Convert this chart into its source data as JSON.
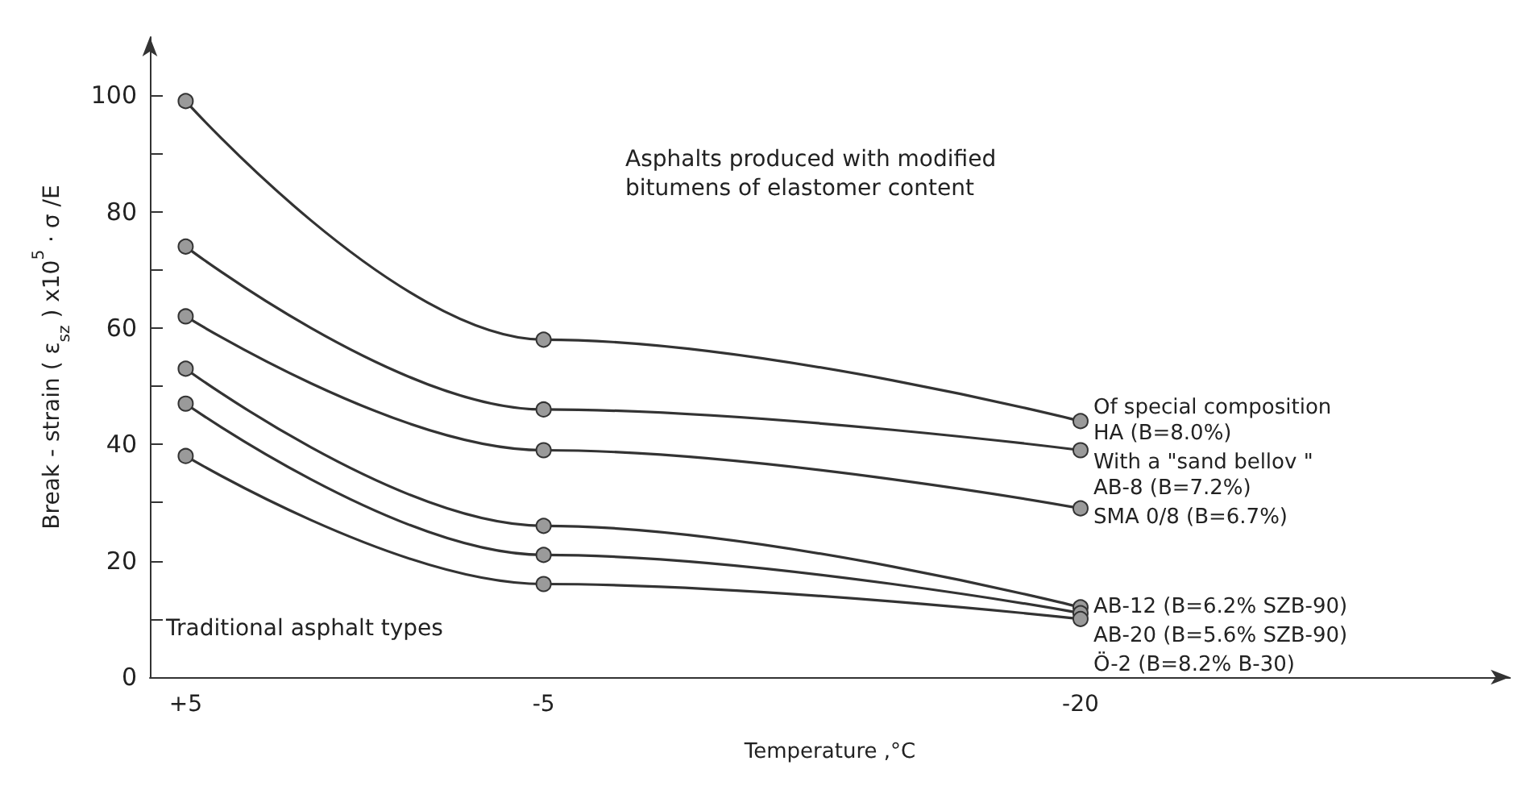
{
  "chart_data": {
    "type": "line",
    "xlabel": "Temperature ,°C",
    "ylabel": "Break - strain ( ε$_{sz}$ ) x10$^{5}$ · σ /E",
    "x": [
      5,
      -5,
      -20
    ],
    "xlim": [
      6,
      -32
    ],
    "xticks": [
      {
        "value": 5,
        "label": "+5"
      },
      -5,
      -20
    ],
    "ylim": [
      0,
      110
    ],
    "yticks": [
      0,
      {
        "value": 10,
        "label": null
      },
      20,
      {
        "value": 30,
        "label": null
      },
      40,
      {
        "value": 50,
        "label": null
      },
      60,
      {
        "value": 70,
        "label": null
      },
      80,
      {
        "value": 90,
        "label": null
      },
      100
    ],
    "marker": "circle",
    "line_style": "solid",
    "grid": false,
    "legend": false,
    "series": [
      {
        "name": "Of special composition\nHA (B=8.0%)",
        "color": "#333333",
        "values": [
          99,
          58,
          44
        ]
      },
      {
        "name": "With a \"sand bellov \"\nAB-8 (B=7.2%)",
        "color": "#333333",
        "values": [
          74,
          46,
          39
        ]
      },
      {
        "name": "SMA 0/8 (B=6.7%)",
        "color": "#333333",
        "values": [
          62,
          39,
          29
        ]
      },
      {
        "name": "AB-12 (B=6.2% SZB-90)",
        "color": "#333333",
        "values": [
          53,
          26,
          12
        ]
      },
      {
        "name": "AB-20 (B=5.6% SZB-90)",
        "color": "#333333",
        "values": [
          47,
          21,
          11
        ]
      },
      {
        "name": "Ö-2 (B=8.2% B-30)",
        "color": "#333333",
        "values": [
          38,
          16,
          10
        ]
      }
    ],
    "annotations": [
      "Asphalts produced with modified\nbitumens of elastomer content",
      "Traditional asphalt types"
    ]
  }
}
